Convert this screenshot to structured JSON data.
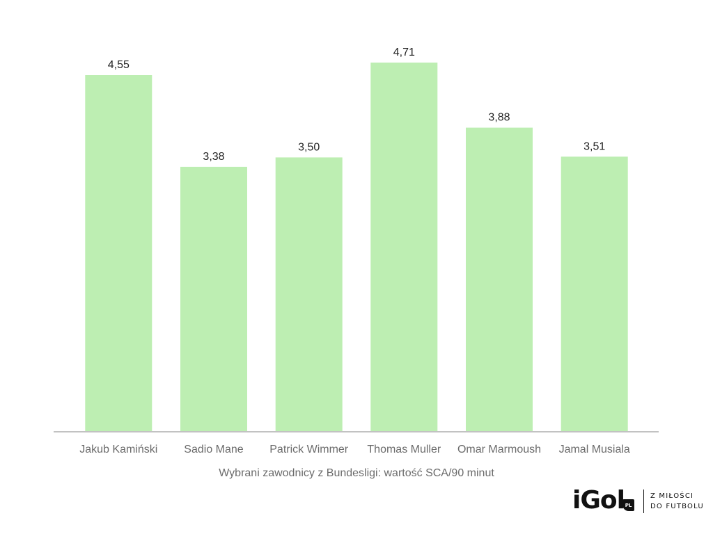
{
  "chart_data": {
    "type": "bar",
    "categories": [
      "Jakub Kamiński",
      "Sadio Mane",
      "Patrick Wimmer",
      "Thomas Muller",
      "Omar Marmoush",
      "Jamal Musiala"
    ],
    "values": [
      4.55,
      3.38,
      3.5,
      4.71,
      3.88,
      3.51
    ],
    "value_labels": [
      "4,55",
      "3,38",
      "3,50",
      "4,71",
      "3,88",
      "3,51"
    ],
    "xlabel": "Wybrani zawodnicy z Bundesligi: wartość SCA/90 minut",
    "ylabel": "",
    "ylim": [
      0,
      4.71
    ],
    "grid": false,
    "colors": {
      "bar": "#bdeeb2",
      "axis": "#c2c2c2",
      "value_text": "#222222",
      "category_text": "#6b6b6b"
    }
  },
  "logo": {
    "mark": "iGol",
    "badge": "PL",
    "tagline_line1": "Z MIŁOŚCI",
    "tagline_line2": "DO FUTBOLU"
  }
}
